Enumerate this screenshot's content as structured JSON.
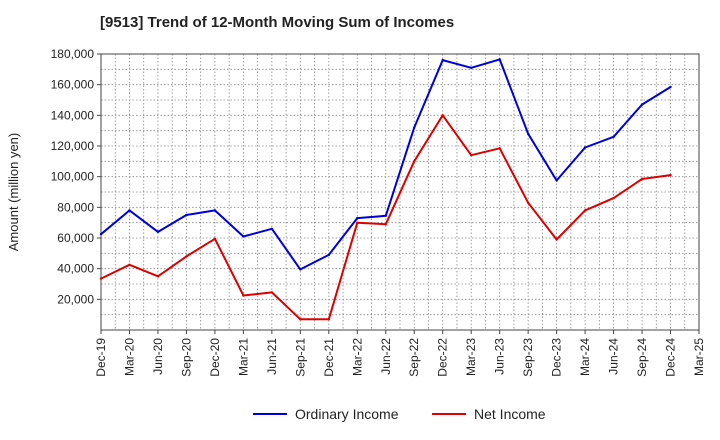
{
  "chart_data": {
    "type": "line",
    "title": "[9513]  Trend of 12-Month Moving Sum of Incomes",
    "xlabel": "",
    "ylabel": "Amount (million yen)",
    "ylim": [
      0,
      180000
    ],
    "yticks": [
      20000,
      40000,
      60000,
      80000,
      100000,
      120000,
      140000,
      160000,
      180000
    ],
    "ytick_labels": [
      "20,000",
      "40,000",
      "60,000",
      "80,000",
      "100,000",
      "120,000",
      "140,000",
      "160,000",
      "180,000"
    ],
    "categories": [
      "Dec-19",
      "Mar-20",
      "Jun-20",
      "Sep-20",
      "Dec-20",
      "Mar-21",
      "Jun-21",
      "Sep-21",
      "Dec-21",
      "Mar-22",
      "Jun-22",
      "Sep-22",
      "Dec-22",
      "Mar-23",
      "Jun-23",
      "Sep-23",
      "Dec-23",
      "Mar-24",
      "Jun-24",
      "Sep-24",
      "Dec-24",
      "Mar-25"
    ],
    "grid": true,
    "legend_position": "bottom",
    "series": [
      {
        "name": "Ordinary Income",
        "color": "#0000dd",
        "values": [
          62500,
          78000,
          64000,
          75000,
          78000,
          61000,
          66000,
          39500,
          49000,
          73000,
          74500,
          132000,
          176000,
          171000,
          176500,
          128000,
          97500,
          119000,
          126000,
          147000,
          158500,
          null
        ]
      },
      {
        "name": "Net Income",
        "color": "#dd0000",
        "values": [
          33500,
          42500,
          35000,
          48000,
          59500,
          22500,
          24500,
          7000,
          7000,
          70000,
          69000,
          110000,
          140000,
          114000,
          118500,
          83000,
          59000,
          78000,
          86000,
          98500,
          101000,
          null
        ]
      }
    ]
  }
}
